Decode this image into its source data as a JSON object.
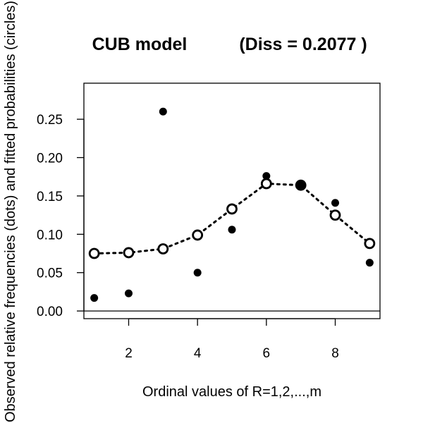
{
  "chart_data": {
    "type": "scatter",
    "title": "CUB model",
    "subtitle": "(Diss = 0.2077 )",
    "xlabel": "Ordinal values of R=1,2,...,m",
    "ylabel": "Observed relative frequencies (dots) and fitted probabilities (circles)",
    "x": [
      1,
      2,
      3,
      4,
      5,
      6,
      7,
      8,
      9
    ],
    "xlim": [
      0.7,
      9.3
    ],
    "ylim": [
      -0.01,
      0.297
    ],
    "xticks": [
      2,
      4,
      6,
      8
    ],
    "yticks": [
      0.0,
      0.05,
      0.1,
      0.15,
      0.2,
      0.25
    ],
    "xtick_labels": [
      "2",
      "4",
      "6",
      "8"
    ],
    "ytick_labels": [
      "0.00",
      "0.05",
      "0.10",
      "0.15",
      "0.20",
      "0.25"
    ],
    "horizontal_reference_line": 0,
    "grid": false,
    "series": [
      {
        "marker": "filled-dot",
        "values": [
          0.017,
          0.023,
          0.26,
          0.05,
          0.106,
          0.176,
          0.164,
          0.141,
          0.063
        ]
      },
      {
        "marker": "open-circle",
        "line": "dotted",
        "values": [
          0.075,
          0.076,
          0.081,
          0.099,
          0.133,
          0.166,
          0.164,
          0.125,
          0.088
        ]
      }
    ],
    "colors": {
      "ink": "#000000",
      "background": "#ffffff"
    }
  }
}
